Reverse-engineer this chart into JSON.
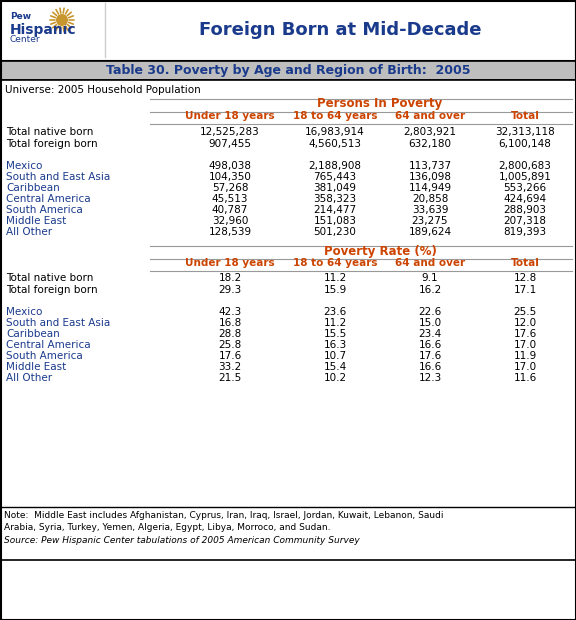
{
  "title_header": "Foreign Born at Mid-Decade",
  "table_title": "Table 30. Poverty by Age and Region of Birth:  2005",
  "universe": "Universe: 2005 Household Population",
  "section1_header": "Persons In Poverty",
  "section2_header": "Poverty Rate (%)",
  "col_headers": [
    "Under 18 years",
    "18 to 64 years",
    "64 and over",
    "Total"
  ],
  "row_labels": [
    "Total native born",
    "Total foreign born",
    "",
    "Mexico",
    "South and East Asia",
    "Caribbean",
    "Central America",
    "South America",
    "Middle East",
    "All Other"
  ],
  "persons_data": [
    [
      "12,525,283",
      "16,983,914",
      "2,803,921",
      "32,313,118"
    ],
    [
      "907,455",
      "4,560,513",
      "632,180",
      "6,100,148"
    ],
    [
      "",
      "",
      "",
      ""
    ],
    [
      "498,038",
      "2,188,908",
      "113,737",
      "2,800,683"
    ],
    [
      "104,350",
      "765,443",
      "136,098",
      "1,005,891"
    ],
    [
      "57,268",
      "381,049",
      "114,949",
      "553,266"
    ],
    [
      "45,513",
      "358,323",
      "20,858",
      "424,694"
    ],
    [
      "40,787",
      "214,477",
      "33,639",
      "288,903"
    ],
    [
      "32,960",
      "151,083",
      "23,275",
      "207,318"
    ],
    [
      "128,539",
      "501,230",
      "189,624",
      "819,393"
    ]
  ],
  "rate_data": [
    [
      "18.2",
      "11.2",
      "9.1",
      "12.8"
    ],
    [
      "29.3",
      "15.9",
      "16.2",
      "17.1"
    ],
    [
      "",
      "",
      "",
      ""
    ],
    [
      "42.3",
      "23.6",
      "22.6",
      "25.5"
    ],
    [
      "16.8",
      "11.2",
      "15.0",
      "12.0"
    ],
    [
      "28.8",
      "15.5",
      "23.4",
      "17.6"
    ],
    [
      "25.8",
      "16.3",
      "16.6",
      "17.0"
    ],
    [
      "17.6",
      "10.7",
      "17.6",
      "11.9"
    ],
    [
      "33.2",
      "15.4",
      "16.6",
      "17.0"
    ],
    [
      "21.5",
      "10.2",
      "12.3",
      "11.6"
    ]
  ],
  "note_line1": "Note:  Middle East includes Afghanistan, Cyprus, Iran, Iraq, Israel, Jordan, Kuwait, Lebanon, Saudi",
  "note_line2": "Arabia, Syria, Turkey, Yemen, Algeria, Egypt, Libya, Morroco, and Sudan.",
  "source": "Source: Pew Hispanic Center tabulations of 2005 American Community Survey",
  "orange": "#CC4400",
  "blue": "#1a3a8c",
  "black": "#000000",
  "gray_bg": "#bebebe",
  "white": "#ffffff",
  "border": "#000000",
  "gray_line": "#999999"
}
